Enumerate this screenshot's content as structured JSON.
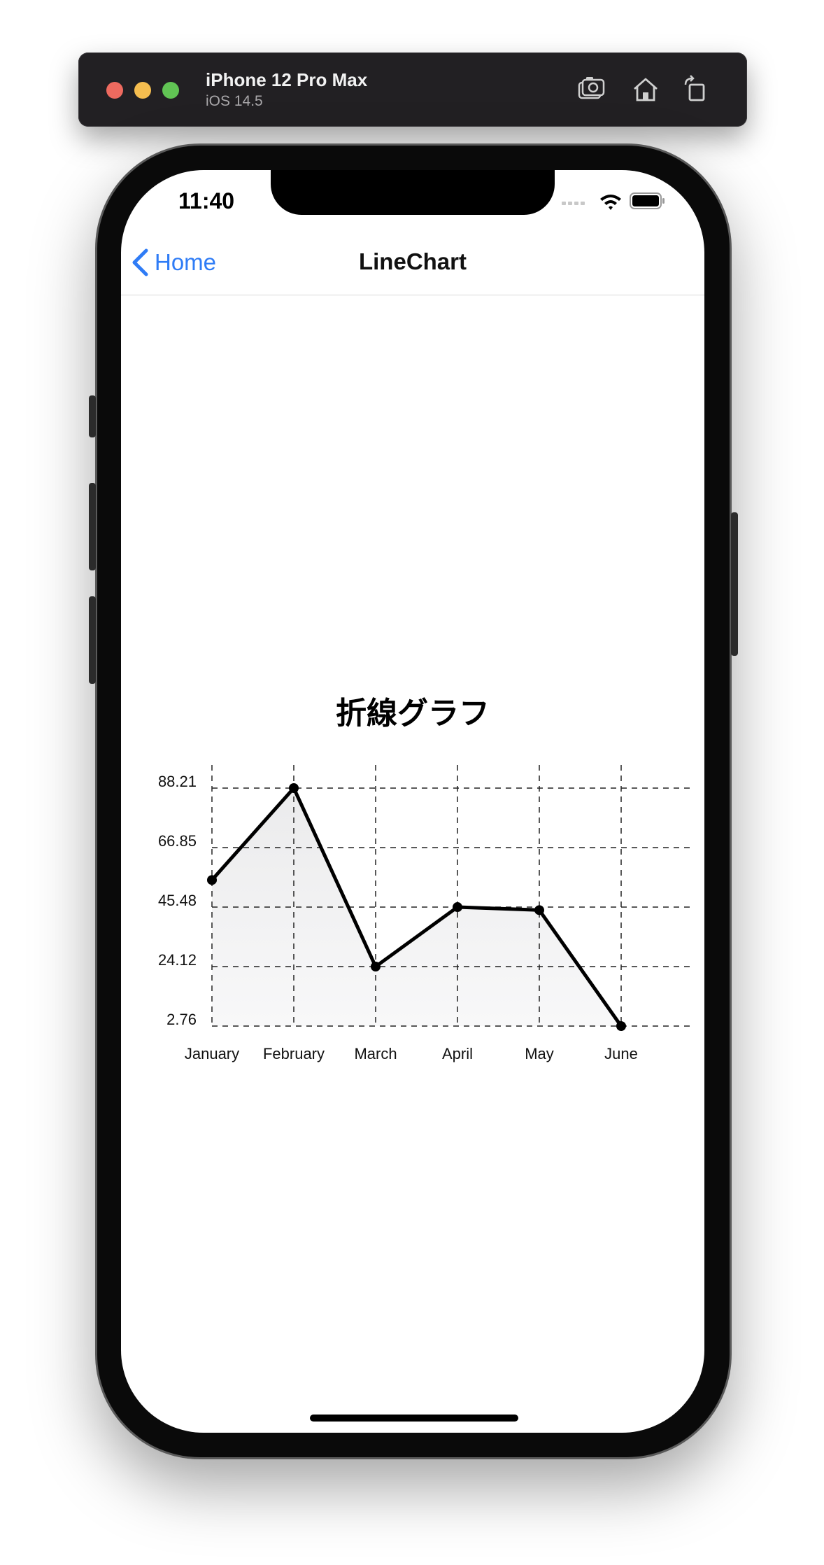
{
  "simulator": {
    "device_name": "iPhone 12 Pro Max",
    "os_version": "iOS 14.5"
  },
  "status_bar": {
    "time": "11:40"
  },
  "nav": {
    "back_label": "Home",
    "title": "LineChart"
  },
  "colors": {
    "accent": "#2f7cf6",
    "line": "#000000",
    "fill": "#f1f1f2"
  },
  "chart_data": {
    "type": "line",
    "title": "折線グラフ",
    "categories": [
      "January",
      "February",
      "March",
      "April",
      "May",
      "June"
    ],
    "series": [
      {
        "values": [
          55.2,
          88.21,
          24.12,
          45.48,
          44.4,
          2.76
        ]
      }
    ],
    "yticks": [
      "88.21",
      "66.85",
      "45.48",
      "24.12",
      "2.76"
    ],
    "ylim": [
      2.76,
      88.21
    ],
    "grid": true,
    "area_fill": true
  }
}
